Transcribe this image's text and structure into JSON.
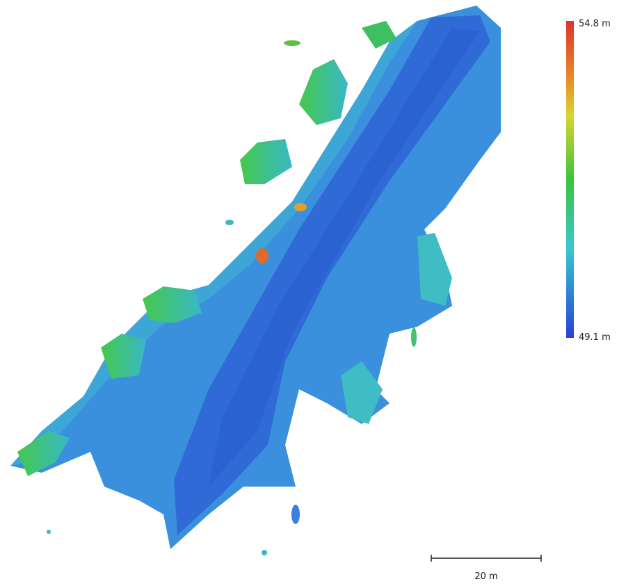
{
  "legend": {
    "max_label": "54.8 m",
    "min_label": "49.1 m"
  },
  "scale_bar": {
    "label": "20 m"
  }
}
